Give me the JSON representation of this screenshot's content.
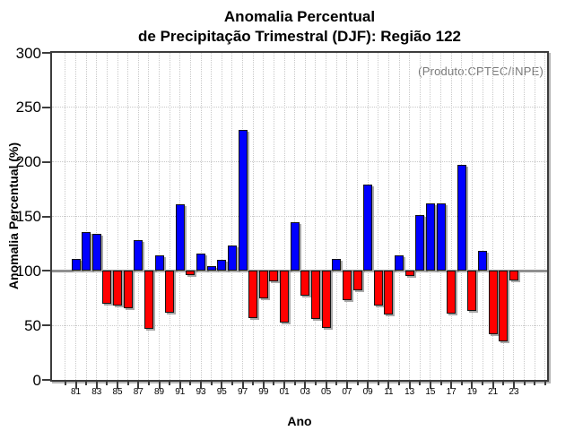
{
  "header": {
    "title_line1": "Anomalia Percentual",
    "title_line2": "de Precipitação Trimestral (DJF): Região 122"
  },
  "annotation": "(Produto:CPTEC/INPE)",
  "chart_data": {
    "type": "bar",
    "title": "Anomalia Percentual de Precipitação Trimestral (DJF): Região 122",
    "xlabel": "Ano",
    "ylabel": "Anomalia Percentual (%)",
    "ylim": [
      0,
      300
    ],
    "yticks": [
      0,
      50,
      100,
      150,
      200,
      250,
      300
    ],
    "baseline": 100,
    "grid": "dotted, vertical line per year and horizontal every 50",
    "legend": "none",
    "color_rule": "value >= 100 blue, value < 100 red",
    "colors": {
      "above_baseline": "#0000ff",
      "below_baseline": "#ff0000",
      "baseline_line": "#909090"
    },
    "categories": [
      "1981",
      "1982",
      "1983",
      "1984",
      "1985",
      "1986",
      "1987",
      "1988",
      "1989",
      "1990",
      "1991",
      "1992",
      "1993",
      "1994",
      "1995",
      "1996",
      "1997",
      "1998",
      "1999",
      "2000",
      "2001",
      "2002",
      "2003",
      "2004",
      "2005",
      "2006",
      "2007",
      "2008",
      "2009",
      "2010",
      "2011",
      "2012",
      "2013",
      "2014",
      "2015",
      "2016",
      "2017",
      "2018",
      "2019",
      "2020",
      "2021",
      "2022",
      "2023"
    ],
    "xtick_labels": [
      "81",
      "83",
      "85",
      "87",
      "89",
      "91",
      "93",
      "95",
      "97",
      "99",
      "01",
      "03",
      "05",
      "07",
      "09",
      "11",
      "13",
      "15",
      "17",
      "19",
      "21",
      "23"
    ],
    "values": [
      111,
      136,
      134,
      70,
      68,
      66,
      128,
      47,
      114,
      62,
      161,
      96,
      116,
      104,
      110,
      123,
      229,
      57,
      75,
      90,
      53,
      145,
      77,
      56,
      48,
      111,
      73,
      82,
      179,
      68,
      60,
      114,
      95,
      151,
      162,
      162,
      61,
      197,
      63,
      118,
      42,
      35,
      91
    ]
  }
}
